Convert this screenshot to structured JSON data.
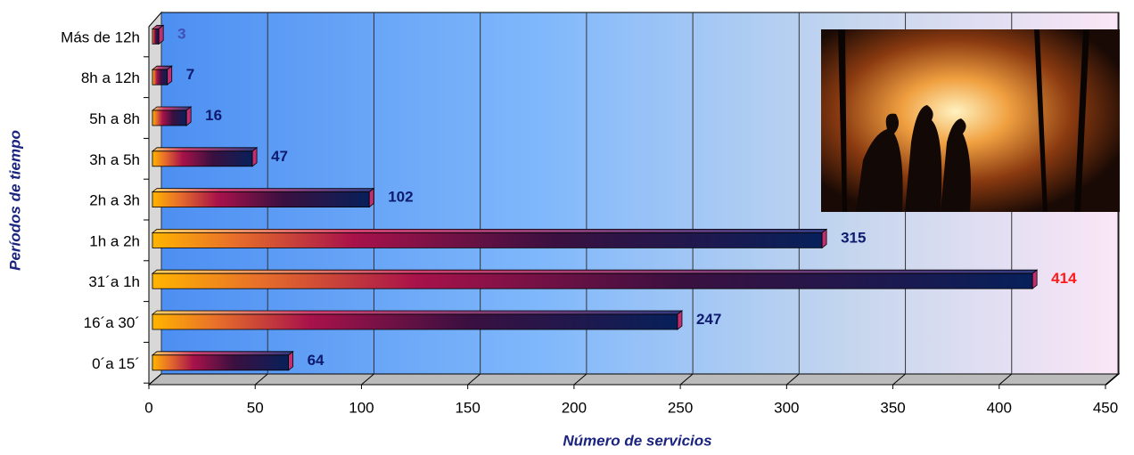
{
  "chart_data": {
    "type": "bar",
    "orientation": "horizontal",
    "x_label": "Número de servicios",
    "y_label": "Períodos de tiempo",
    "categories": [
      "Más de 12h",
      "8h a 12h",
      "5h a 8h",
      "3h a 5h",
      "2h a 3h",
      "1h a 2h",
      "31´a 1h",
      "16´a 30´",
      "0´a 15´"
    ],
    "values": [
      3,
      7,
      16,
      47,
      102,
      315,
      414,
      247,
      64
    ],
    "value_label_colors": [
      "#3f51b5",
      "#0d1a6e",
      "#0d1a6e",
      "#0d1a6e",
      "#0d1a6e",
      "#0d1a6e",
      "#ff1a1a",
      "#0d1a6e",
      "#0d1a6e"
    ],
    "xlim": [
      0,
      450
    ],
    "xticks": [
      0,
      50,
      100,
      150,
      200,
      250,
      300,
      350,
      400,
      450
    ],
    "grid": true
  }
}
